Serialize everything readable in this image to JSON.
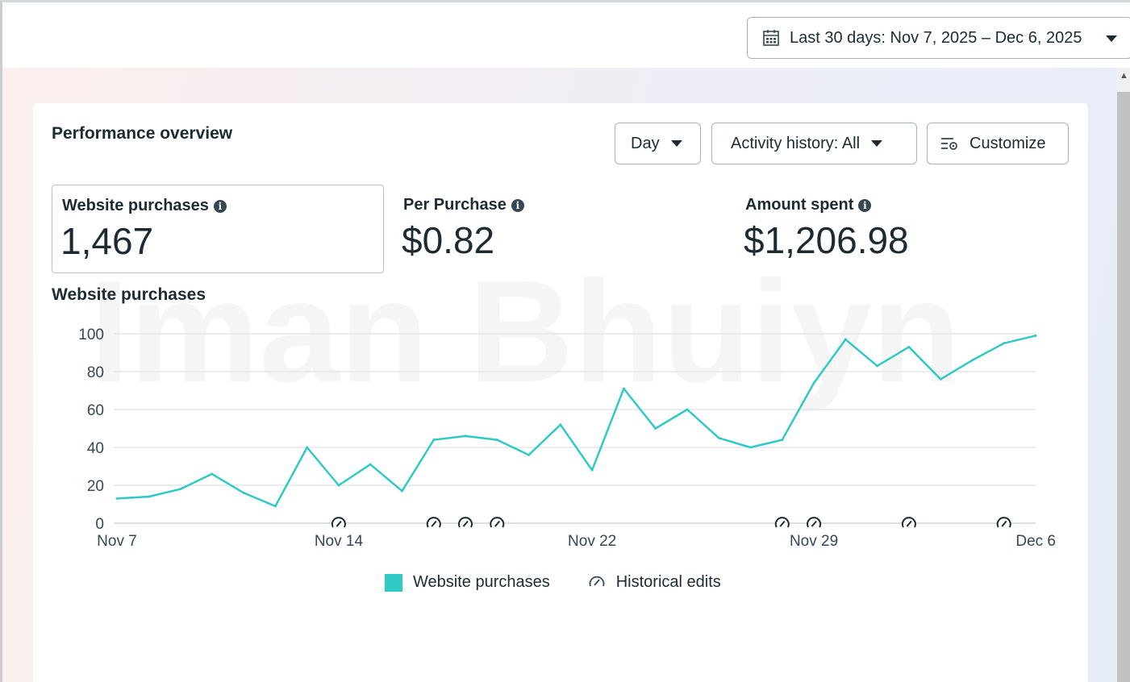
{
  "header": {
    "date_range_label": "Last 30 days: Nov 7, 2025 – Dec 6, 2025"
  },
  "card": {
    "title": "Performance overview",
    "controls": {
      "granularity": "Day",
      "activity_history": "Activity history: All",
      "customize": "Customize"
    },
    "watermark": "Iman Bhuiyn",
    "metrics": [
      {
        "label": "Website purchases",
        "value": "1,467",
        "selected": true
      },
      {
        "label": "Per Purchase",
        "value": "$0.82"
      },
      {
        "label": "Amount spent",
        "value": "$1,206.98"
      }
    ],
    "chart_title": "Website purchases"
  },
  "legend": {
    "series_label": "Website purchases",
    "edits_label": "Historical edits"
  },
  "colors": {
    "series": "#30c9c6",
    "text": "#1c2b33",
    "grid": "#e4e6eb"
  },
  "chart_data": {
    "type": "line",
    "x": [
      "Nov 7",
      "Nov 8",
      "Nov 9",
      "Nov 10",
      "Nov 11",
      "Nov 12",
      "Nov 13",
      "Nov 14",
      "Nov 15",
      "Nov 16",
      "Nov 17",
      "Nov 18",
      "Nov 19",
      "Nov 20",
      "Nov 21",
      "Nov 22",
      "Nov 23",
      "Nov 24",
      "Nov 25",
      "Nov 26",
      "Nov 27",
      "Nov 28",
      "Nov 29",
      "Nov 30",
      "Dec 1",
      "Dec 2",
      "Dec 3",
      "Dec 4",
      "Dec 5",
      "Dec 6"
    ],
    "x_tick_labels": [
      "Nov 7",
      "Nov 14",
      "Nov 22",
      "Nov 29",
      "Dec 6"
    ],
    "x_tick_indices": [
      0,
      7,
      15,
      22,
      29
    ],
    "yticks": [
      0,
      20,
      40,
      60,
      80,
      100
    ],
    "ylim": [
      0,
      100
    ],
    "series": [
      {
        "name": "Website purchases",
        "values": [
          13,
          14,
          18,
          26,
          16,
          9,
          40,
          20,
          31,
          17,
          44,
          46,
          44,
          36,
          52,
          28,
          71,
          50,
          60,
          45,
          40,
          44,
          74,
          97,
          83,
          93,
          76,
          86,
          95,
          99
        ]
      }
    ],
    "historical_edit_indices": [
      7,
      10,
      11,
      12,
      21,
      22,
      25,
      28
    ],
    "grid": true,
    "legend_position": "bottom"
  }
}
